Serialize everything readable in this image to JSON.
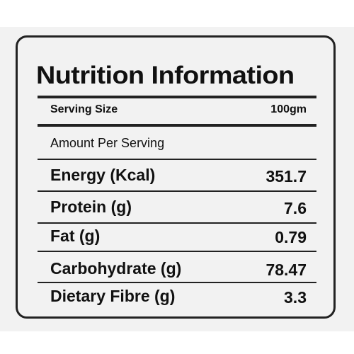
{
  "title": "Nutrition Information",
  "serving": {
    "label": "Serving Size",
    "value": "100gm"
  },
  "amount_label": "Amount Per Serving",
  "nutrients": [
    {
      "name": "Energy (Kcal)",
      "value": "351.7"
    },
    {
      "name": "Protein (g)",
      "value": "7.6"
    },
    {
      "name": "Fat (g)",
      "value": "0.79"
    },
    {
      "name": "Carbohydrate (g)",
      "value": "78.47"
    },
    {
      "name": "Dietary Fibre (g)",
      "value": "3.3"
    }
  ]
}
